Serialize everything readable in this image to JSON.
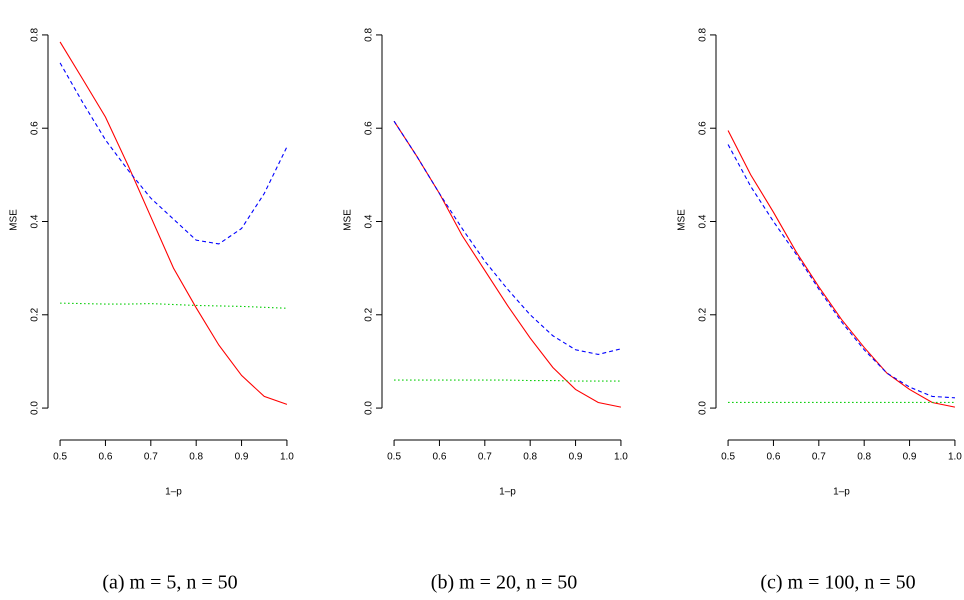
{
  "chart_data": [
    {
      "type": "line",
      "caption": "(a) m = 5, n = 50",
      "xlabel": "1–p",
      "ylabel": "MSE",
      "x": [
        0.5,
        0.55,
        0.6,
        0.65,
        0.7,
        0.75,
        0.8,
        0.85,
        0.9,
        0.95,
        1.0
      ],
      "xlim": [
        0.48,
        1.02
      ],
      "ylim": [
        -0.032,
        0.832
      ],
      "xticks": [
        0.5,
        0.6,
        0.7,
        0.8,
        0.9,
        {
          "value": 1,
          "label": "1.0"
        }
      ],
      "yticks": [
        {
          "value": 0,
          "label": "0.0"
        },
        0.2,
        0.4,
        0.6,
        0.8
      ],
      "series": [
        {
          "color": "#ff0000",
          "linestyle": "solid",
          "values": [
            0.785,
            0.705,
            0.624,
            0.52,
            0.41,
            0.3,
            0.215,
            0.135,
            0.07,
            0.025,
            0.008
          ]
        },
        {
          "color": "#0000ff",
          "linestyle": "dashed",
          "values": [
            0.74,
            0.655,
            0.575,
            0.51,
            0.45,
            0.405,
            0.36,
            0.352,
            0.385,
            0.46,
            0.56
          ]
        },
        {
          "color": "#00cc00",
          "linestyle": "dotted",
          "values": [
            0.225,
            0.224,
            0.223,
            0.223,
            0.224,
            0.222,
            0.22,
            0.219,
            0.218,
            0.216,
            0.214
          ]
        }
      ]
    },
    {
      "type": "line",
      "caption": "(b) m = 20, n = 50",
      "xlabel": "1–p",
      "ylabel": "MSE",
      "x": [
        0.5,
        0.55,
        0.6,
        0.65,
        0.7,
        0.75,
        0.8,
        0.85,
        0.9,
        0.95,
        1.0
      ],
      "xlim": [
        0.48,
        1.02
      ],
      "ylim": [
        -0.032,
        0.832
      ],
      "xticks": [
        0.5,
        0.6,
        0.7,
        0.8,
        0.9,
        {
          "value": 1,
          "label": "1.0"
        }
      ],
      "yticks": [
        {
          "value": 0,
          "label": "0.0"
        },
        0.2,
        0.4,
        0.6,
        0.8
      ],
      "series": [
        {
          "color": "#ff0000",
          "linestyle": "solid",
          "values": [
            0.615,
            0.54,
            0.46,
            0.37,
            0.295,
            0.22,
            0.15,
            0.087,
            0.04,
            0.012,
            0.002
          ]
        },
        {
          "color": "#0000ff",
          "linestyle": "dashed",
          "values": [
            0.615,
            0.54,
            0.46,
            0.385,
            0.315,
            0.255,
            0.2,
            0.155,
            0.125,
            0.115,
            0.127
          ]
        },
        {
          "color": "#00cc00",
          "linestyle": "dotted",
          "values": [
            0.06,
            0.06,
            0.06,
            0.06,
            0.06,
            0.06,
            0.059,
            0.059,
            0.058,
            0.058,
            0.058
          ]
        }
      ]
    },
    {
      "type": "line",
      "caption": "(c) m = 100, n = 50",
      "xlabel": "1–p",
      "ylabel": "MSE",
      "x": [
        0.5,
        0.55,
        0.6,
        0.65,
        0.7,
        0.75,
        0.8,
        0.85,
        0.9,
        0.95,
        1.0
      ],
      "xlim": [
        0.48,
        1.02
      ],
      "ylim": [
        -0.032,
        0.832
      ],
      "xticks": [
        0.5,
        0.6,
        0.7,
        0.8,
        0.9,
        {
          "value": 1,
          "label": "1.0"
        }
      ],
      "yticks": [
        {
          "value": 0,
          "label": "0.0"
        },
        0.2,
        0.4,
        0.6,
        0.8
      ],
      "series": [
        {
          "color": "#ff0000",
          "linestyle": "solid",
          "values": [
            0.595,
            0.5,
            0.42,
            0.335,
            0.26,
            0.19,
            0.13,
            0.075,
            0.04,
            0.012,
            0.002
          ]
        },
        {
          "color": "#0000ff",
          "linestyle": "dashed",
          "values": [
            0.565,
            0.475,
            0.4,
            0.33,
            0.255,
            0.185,
            0.125,
            0.075,
            0.045,
            0.025,
            0.022
          ]
        },
        {
          "color": "#00cc00",
          "linestyle": "dotted",
          "values": [
            0.012,
            0.012,
            0.012,
            0.012,
            0.012,
            0.012,
            0.012,
            0.012,
            0.012,
            0.012,
            0.012
          ]
        }
      ]
    }
  ]
}
